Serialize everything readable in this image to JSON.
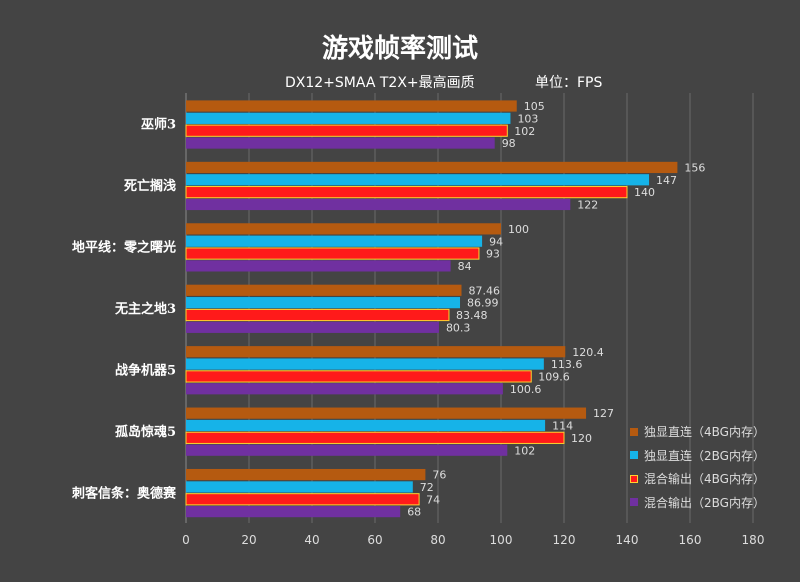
{
  "title": "游戏帧率测试",
  "subtitle": "DX12+SMAA T2X+最高画质",
  "unit": "单位：FPS",
  "chart_data": {
    "type": "bar",
    "orientation": "horizontal",
    "categories": [
      "巫师3",
      "死亡搁浅",
      "地平线：零之曙光",
      "无主之地3",
      "战争机器5",
      "孤岛惊魂5",
      "刺客信条：奥德赛"
    ],
    "series": [
      {
        "name": "独显直连（4BG内存）",
        "color": "#b55a10",
        "values": [
          105,
          156,
          100,
          87.46,
          120.4,
          127,
          76
        ],
        "labels": [
          "105",
          "156",
          "100",
          "87.46",
          "120.4",
          "127",
          "76"
        ]
      },
      {
        "name": "独显直连（2BG内存）",
        "color": "#16b3e8",
        "values": [
          103,
          147,
          94,
          86.99,
          113.6,
          114,
          72
        ],
        "labels": [
          "103",
          "147",
          "94",
          "86.99",
          "113.6",
          "114",
          "72"
        ]
      },
      {
        "name": "混合输出（4BG内存）",
        "color": "#ff1a1a",
        "values": [
          102,
          140,
          93,
          83.48,
          109.6,
          120,
          74
        ],
        "labels": [
          "102",
          "140",
          "93",
          "83.48",
          "109.6",
          "120",
          "74"
        ]
      },
      {
        "name": "混合输出（2BG内存）",
        "color": "#7030a0",
        "values": [
          98,
          122,
          84,
          80.3,
          100.6,
          102,
          68
        ],
        "labels": [
          "98",
          "122",
          "84",
          "80.3",
          "100.6",
          "102",
          "68"
        ]
      }
    ],
    "xlim": [
      0,
      180
    ],
    "xticks": [
      0,
      20,
      40,
      60,
      80,
      100,
      120,
      140,
      160,
      180
    ],
    "grid": true,
    "legend": "bottom-right"
  }
}
